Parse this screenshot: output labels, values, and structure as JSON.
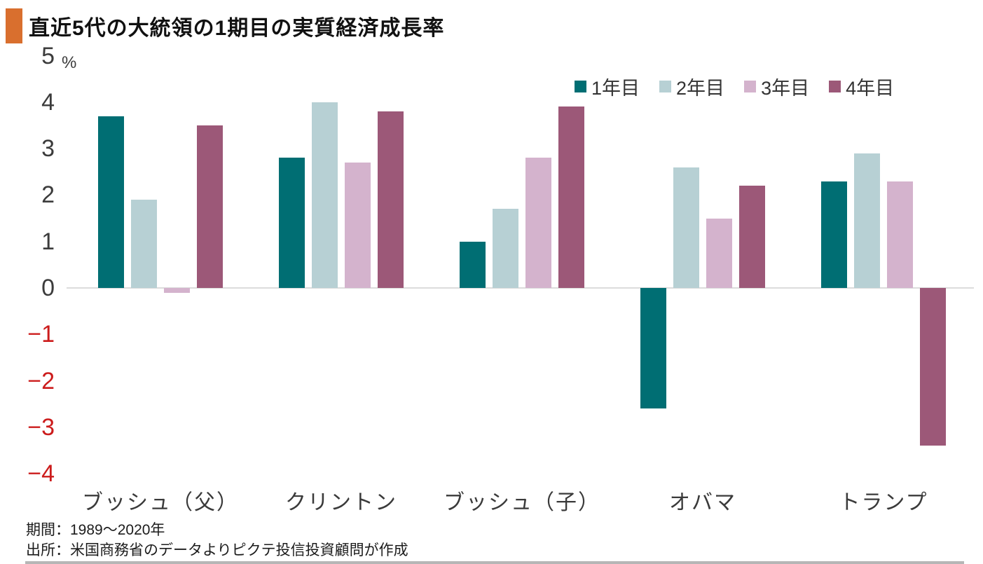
{
  "title": "直近5代の大統領の1期目の実質経済成長率",
  "colors": {
    "accent_orange": "#d96f2e",
    "negative_tick": "#cc1c1c",
    "zero_line": "#dcdcdc"
  },
  "footer": {
    "period": "期間：1989～2020年",
    "source": "出所：米国商務省のデータよりピクテ投信投資顧問が作成"
  },
  "chart_data": {
    "type": "bar",
    "title": "直近5代の大統領の1期目の実質経済成長率",
    "categories": [
      "ブッシュ（父）",
      "クリントン",
      "ブッシュ（子）",
      "オバマ",
      "トランプ"
    ],
    "series": [
      {
        "name": "1年目",
        "color": "#006e73",
        "values": [
          3.7,
          2.8,
          1.0,
          -2.6,
          2.3
        ]
      },
      {
        "name": "2年目",
        "color": "#b7d0d4",
        "values": [
          1.9,
          4.0,
          1.7,
          2.6,
          2.9
        ]
      },
      {
        "name": "3年目",
        "color": "#d4b3cd",
        "values": [
          -0.1,
          2.7,
          2.8,
          1.5,
          2.3
        ]
      },
      {
        "name": "4年目",
        "color": "#9c5878",
        "values": [
          3.5,
          3.8,
          3.9,
          2.2,
          -3.4
        ]
      }
    ],
    "xlabel": "",
    "ylabel": "%",
    "ylim": [
      -4,
      5
    ],
    "yticks": [
      5,
      4,
      3,
      2,
      1,
      0,
      -1,
      -2,
      -3,
      -4
    ],
    "grid": false,
    "legend_position": "top-right"
  }
}
